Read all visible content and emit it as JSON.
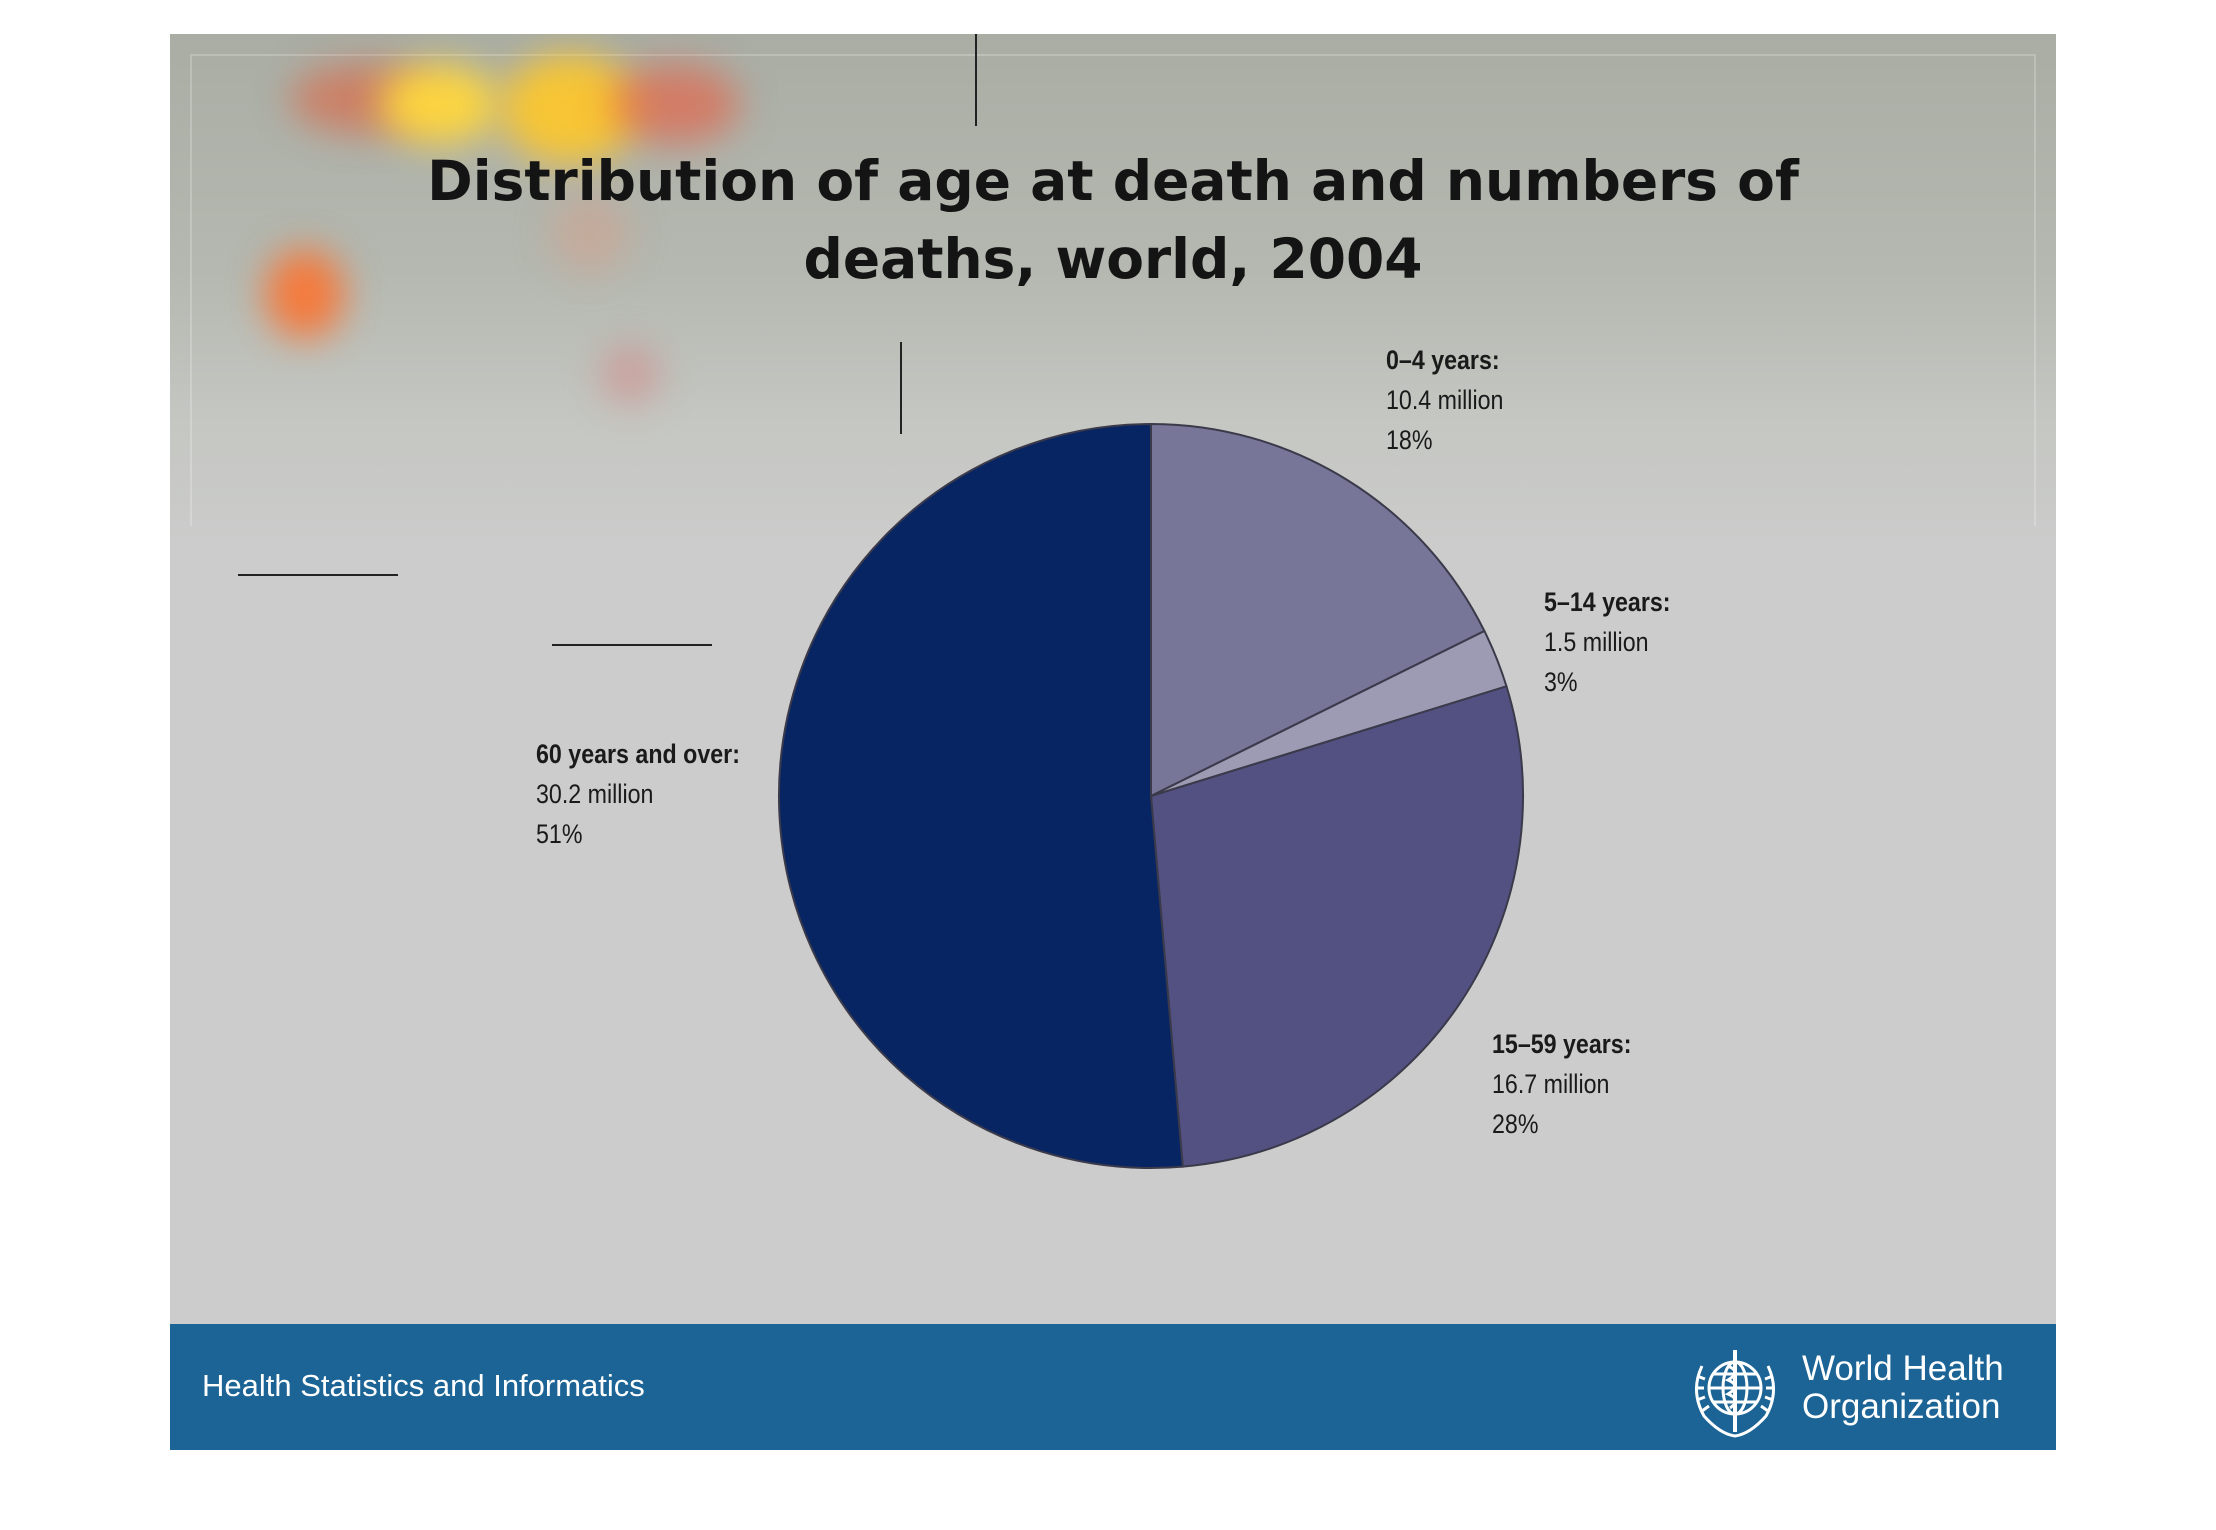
{
  "slide": {
    "footer_text": "Health Statistics and Informatics",
    "organization": [
      "World Health",
      "Organization"
    ]
  },
  "colors": {
    "slide_background": "#cccccc",
    "footer_background": "#1b6495",
    "footer_text": "#ffffff",
    "slice_outline": "#3a3a4a"
  },
  "icons": [
    "who-emblem-icon"
  ],
  "chart_data": {
    "type": "pie",
    "title": "Distribution of age at death and numbers of deaths, world, 2004",
    "title_lines": [
      "Distribution of age at death and numbers of",
      "deaths, world, 2004"
    ],
    "unit": "million",
    "slices": [
      {
        "name": "0–4 years:",
        "value": 10.4,
        "value_label": "10.4 million",
        "percent": 18,
        "percent_label": "18%",
        "color": "#777598"
      },
      {
        "name": "5–14 years:",
        "value": 1.5,
        "value_label": "1.5 million",
        "percent": 3,
        "percent_label": "3%",
        "color": "#9d9bb3"
      },
      {
        "name": "15–59 years:",
        "value": 16.7,
        "value_label": "16.7 million",
        "percent": 28,
        "percent_label": "28%",
        "color": "#535182"
      },
      {
        "name": "60 years and over:",
        "value": 30.2,
        "value_label": "30.2 million",
        "percent": 51,
        "percent_label": "51%",
        "color": "#082563"
      }
    ],
    "start_angle": "12 o'clock",
    "direction": "clockwise",
    "legend": "none"
  }
}
